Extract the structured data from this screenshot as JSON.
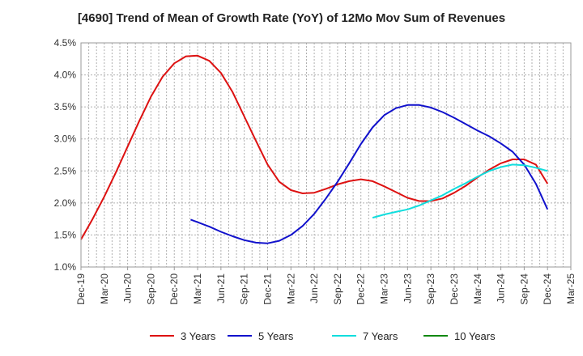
{
  "chart_data": {
    "type": "line",
    "title": "[4690]  Trend of Mean of Growth Rate (YoY) of 12Mo Mov Sum of Revenues",
    "xlabel": "",
    "ylabel": "",
    "ylim": [
      1.0,
      4.5
    ],
    "y_ticks": [
      "1.0%",
      "1.5%",
      "2.0%",
      "2.5%",
      "3.0%",
      "3.5%",
      "4.0%",
      "4.5%"
    ],
    "y_tick_values": [
      1.0,
      1.5,
      2.0,
      2.5,
      3.0,
      3.5,
      4.0,
      4.5
    ],
    "x_ticks": [
      "Dec-19",
      "Mar-20",
      "Jun-20",
      "Sep-20",
      "Dec-20",
      "Mar-21",
      "Jun-21",
      "Sep-21",
      "Dec-21",
      "Mar-22",
      "Jun-22",
      "Sep-22",
      "Dec-22",
      "Mar-23",
      "Jun-23",
      "Sep-23",
      "Dec-23",
      "Mar-24",
      "Jun-24",
      "Sep-24",
      "Dec-24",
      "Mar-25"
    ],
    "x_range_quarters": [
      0,
      21
    ],
    "grid": true,
    "series": [
      {
        "name": "3 Years",
        "color": "#dd1111",
        "x": [
          0,
          0.5,
          1,
          1.5,
          2,
          2.5,
          3,
          3.5,
          4,
          4.5,
          5,
          5.5,
          6,
          6.5,
          7,
          7.5,
          8,
          8.5,
          9,
          9.5,
          10,
          10.5,
          11,
          11.5,
          12,
          12.5,
          13,
          13.5,
          14,
          14.5,
          15,
          15.5,
          16,
          16.5,
          17,
          17.5,
          18,
          18.5,
          19,
          19.5,
          20
        ],
        "values": [
          1.43,
          1.75,
          2.1,
          2.48,
          2.88,
          3.28,
          3.66,
          3.97,
          4.18,
          4.29,
          4.3,
          4.22,
          4.03,
          3.73,
          3.35,
          2.97,
          2.6,
          2.33,
          2.2,
          2.15,
          2.16,
          2.22,
          2.29,
          2.34,
          2.37,
          2.34,
          2.26,
          2.17,
          2.08,
          2.03,
          2.03,
          2.07,
          2.16,
          2.27,
          2.4,
          2.52,
          2.62,
          2.68,
          2.68,
          2.6,
          2.3
        ]
      },
      {
        "name": "5 Years",
        "color": "#1111cc",
        "x": [
          4.7,
          5,
          5.5,
          6,
          6.5,
          7,
          7.5,
          8,
          8.5,
          9,
          9.5,
          10,
          10.5,
          11,
          11.5,
          12,
          12.5,
          13,
          13.5,
          14,
          14.5,
          15,
          15.5,
          16,
          16.5,
          17,
          17.5,
          18,
          18.5,
          19,
          19.5,
          20
        ],
        "values": [
          1.74,
          1.7,
          1.63,
          1.55,
          1.48,
          1.42,
          1.38,
          1.37,
          1.41,
          1.5,
          1.64,
          1.83,
          2.07,
          2.33,
          2.62,
          2.92,
          3.18,
          3.37,
          3.48,
          3.53,
          3.53,
          3.49,
          3.42,
          3.33,
          3.23,
          3.13,
          3.04,
          2.93,
          2.8,
          2.6,
          2.3,
          1.9
        ]
      },
      {
        "name": "7 Years",
        "color": "#11dddd",
        "x": [
          12.5,
          13,
          13.5,
          14,
          14.5,
          15,
          15.5,
          16,
          16.5,
          17,
          17.5,
          18,
          18.5,
          19,
          19.5,
          20
        ],
        "values": [
          1.77,
          1.82,
          1.86,
          1.9,
          1.96,
          2.04,
          2.12,
          2.22,
          2.31,
          2.41,
          2.5,
          2.56,
          2.6,
          2.59,
          2.55,
          2.5
        ]
      },
      {
        "name": "10 Years",
        "color": "#118811",
        "x": [],
        "values": []
      }
    ],
    "legend_position": "bottom"
  }
}
